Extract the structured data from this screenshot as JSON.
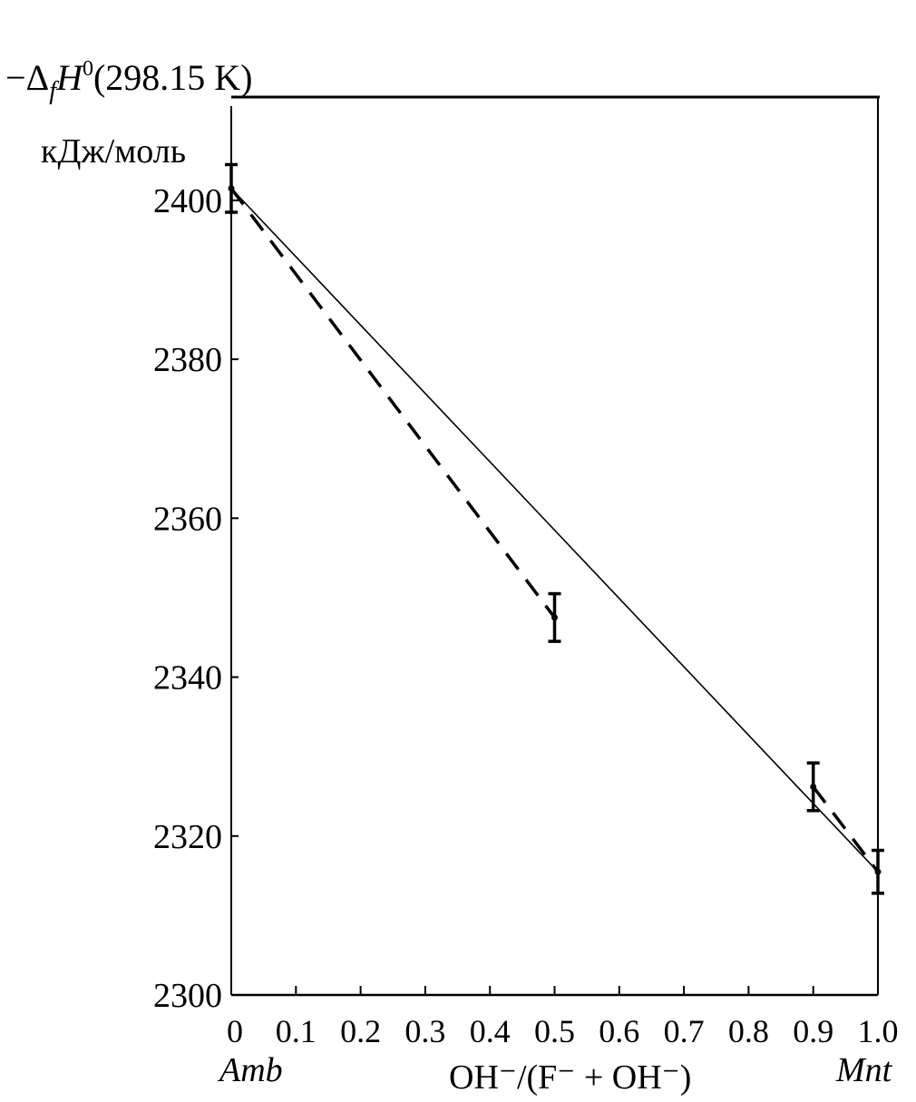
{
  "chart_data": {
    "type": "line",
    "ylabel_line1": "−ΔfH0(298.15 K)",
    "ylabel_line2": "кДж/моль",
    "xlabel": "OH⁻/(F⁻ + OH⁻)",
    "x_end_labels": {
      "left": "Amb",
      "right": "Mnt"
    },
    "xlim": [
      0,
      1.0
    ],
    "ylim": [
      2300,
      2413
    ],
    "x_ticks": [
      0,
      0.1,
      0.2,
      0.3,
      0.4,
      0.5,
      0.6,
      0.7,
      0.8,
      0.9,
      1.0
    ],
    "x_tick_labels": [
      "0",
      "0.1",
      "0.2",
      "0.3",
      "0.4",
      "0.5",
      "0.6",
      "0.7",
      "0.8",
      "0.9",
      "1.0"
    ],
    "y_ticks": [
      2300,
      2320,
      2340,
      2360,
      2380,
      2400
    ],
    "y_tick_labels": [
      "2300",
      "2320",
      "2340",
      "2360",
      "2380",
      "2400"
    ],
    "grid": false,
    "points": [
      {
        "x": 0,
        "y": 2401.5,
        "err": 3
      },
      {
        "x": 0.5,
        "y": 2347.5,
        "err": 3
      },
      {
        "x": 0.9,
        "y": 2326.2,
        "err": 3
      },
      {
        "x": 1.0,
        "y": 2315.5,
        "err": 2.7
      }
    ],
    "series": [
      {
        "style": "solid",
        "x": [
          0,
          1.0
        ],
        "y": [
          2401.5,
          2315.5
        ]
      },
      {
        "style": "dashed",
        "x": [
          0,
          0.5
        ],
        "y": [
          2401.5,
          2347.5
        ]
      },
      {
        "style": "dashed",
        "x": [
          0.9,
          1.0
        ],
        "y": [
          2326.2,
          2315.5
        ]
      }
    ]
  }
}
